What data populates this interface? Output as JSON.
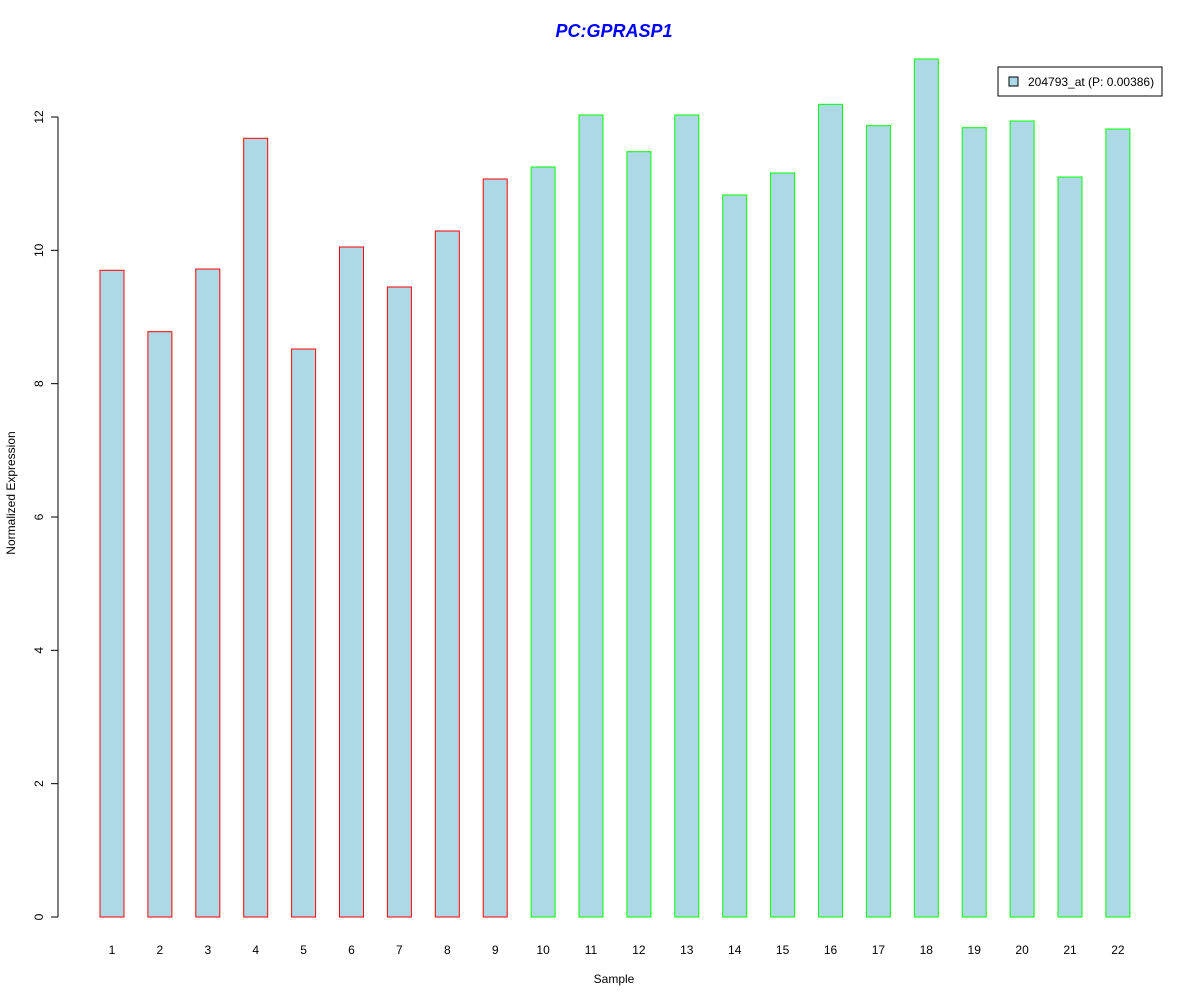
{
  "chart_data": {
    "type": "bar",
    "title": "PC:GPRASP1",
    "xlabel": "Sample",
    "ylabel": "Normalized Expression",
    "ylim": [
      0,
      12
    ],
    "yticks": [
      0,
      2,
      4,
      6,
      8,
      10,
      12
    ],
    "categories": [
      "1",
      "2",
      "3",
      "4",
      "5",
      "6",
      "7",
      "8",
      "9",
      "10",
      "11",
      "12",
      "13",
      "14",
      "15",
      "16",
      "17",
      "18",
      "19",
      "20",
      "21",
      "22"
    ],
    "series": [
      {
        "name": "204793_at (P: 0.00386)",
        "values": [
          9.7,
          8.78,
          9.72,
          11.68,
          8.52,
          10.05,
          9.45,
          10.29,
          11.07,
          11.25,
          12.03,
          11.48,
          12.03,
          10.83,
          11.16,
          12.19,
          11.87,
          12.87,
          11.84,
          11.94,
          11.1,
          11.82
        ]
      }
    ],
    "groups": [
      {
        "samples": [
          1,
          9
        ],
        "border_color": "#ff0000"
      },
      {
        "samples": [
          10,
          22
        ],
        "border_color": "#00ff00"
      }
    ],
    "bar_fill": "#add8e6",
    "title_color": "#0000ff",
    "legend_position": "top-right",
    "grid": false
  }
}
